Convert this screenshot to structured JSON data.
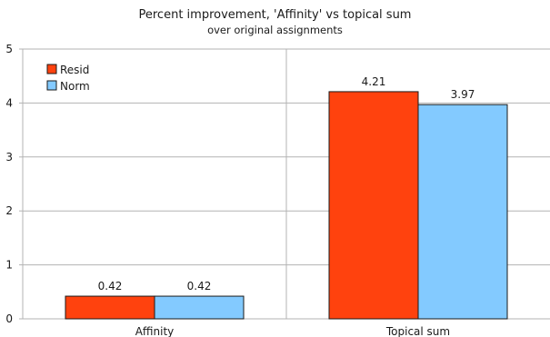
{
  "chart_data": {
    "type": "bar",
    "title": "Percent improvement, 'Affinity' vs topical sum",
    "subtitle": "over original assignments",
    "categories": [
      "Affinity",
      "Topical sum"
    ],
    "series": [
      {
        "name": "Resid",
        "values": [
          0.42,
          4.21
        ],
        "color": "#ff420e"
      },
      {
        "name": "Norm",
        "values": [
          0.42,
          3.97
        ],
        "color": "#83caff"
      }
    ],
    "data_labels": [
      [
        "0.42",
        "4.21"
      ],
      [
        "0.42",
        "3.97"
      ]
    ],
    "ylim": [
      0,
      5
    ],
    "yticks": [
      0,
      1,
      2,
      3,
      4,
      5
    ],
    "grid": true,
    "legend_position": "top-left"
  }
}
